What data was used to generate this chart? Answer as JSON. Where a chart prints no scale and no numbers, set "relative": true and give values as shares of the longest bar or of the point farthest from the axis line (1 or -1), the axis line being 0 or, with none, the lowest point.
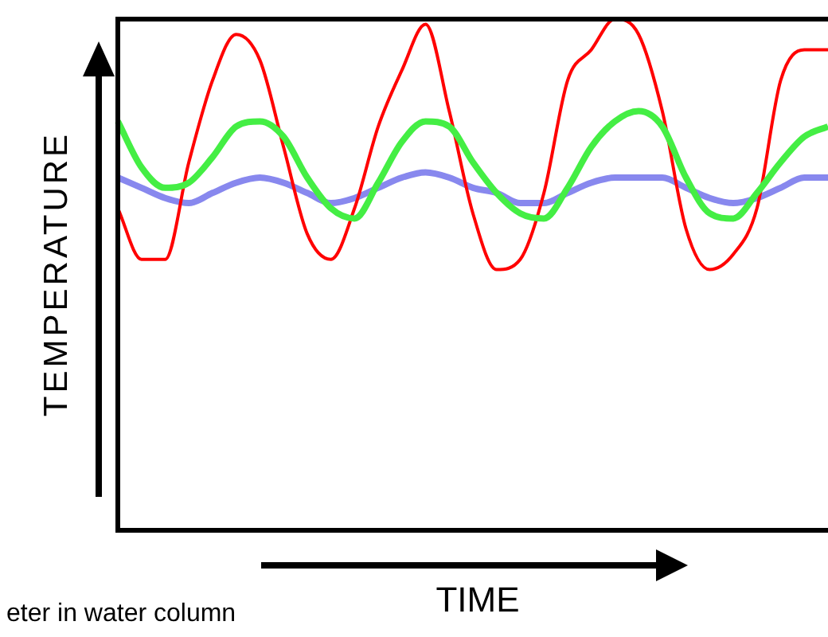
{
  "chart_data": {
    "type": "line",
    "relative": true,
    "xlabel": "TIME",
    "ylabel": "TEMPERATURE",
    "marker": "none",
    "annotations": [
      "eter in water column"
    ],
    "categories": [
      null,
      null,
      null,
      null,
      null,
      null,
      null,
      null,
      null,
      null,
      null,
      null,
      null,
      null,
      null,
      null,
      null,
      null,
      null,
      null,
      null,
      null,
      null,
      null,
      null,
      null,
      null,
      null,
      null,
      null,
      null
    ],
    "series": [
      {
        "color": "#44ee44",
        "values": [
          0.8,
          0.71,
          0.67,
          0.68,
          0.73,
          0.79,
          0.8,
          0.77,
          0.69,
          0.63,
          0.61,
          0.68,
          0.76,
          0.8,
          0.79,
          0.72,
          0.66,
          0.62,
          0.61,
          0.67,
          0.75,
          0.8,
          0.82,
          0.79,
          0.69,
          0.62,
          0.61,
          0.66,
          0.72,
          0.77,
          0.79
        ]
      },
      {
        "color": "#ff0000",
        "values": [
          0.63,
          0.53,
          0.53,
          0.72,
          0.88,
          0.97,
          0.92,
          0.75,
          0.58,
          0.53,
          0.63,
          0.79,
          0.9,
          0.99,
          0.82,
          0.62,
          0.51,
          0.53,
          0.66,
          0.88,
          0.94,
          1.0,
          0.97,
          0.82,
          0.59,
          0.51,
          0.54,
          0.63,
          0.88,
          0.94,
          0.94
        ]
      },
      {
        "color": "#8888ee",
        "values": [
          0.69,
          0.67,
          0.65,
          0.64,
          0.66,
          0.68,
          0.69,
          0.68,
          0.66,
          0.64,
          0.65,
          0.67,
          0.69,
          0.7,
          0.69,
          0.67,
          0.66,
          0.64,
          0.64,
          0.66,
          0.68,
          0.69,
          0.69,
          0.69,
          0.67,
          0.65,
          0.64,
          0.65,
          0.67,
          0.69,
          0.69
        ]
      }
    ]
  }
}
